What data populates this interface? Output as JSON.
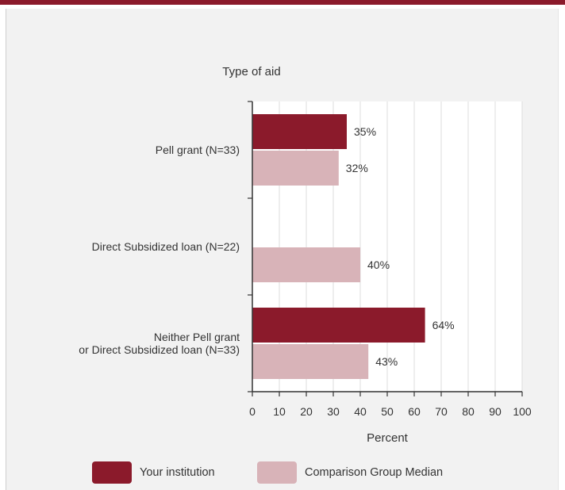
{
  "chart_data": {
    "type": "bar",
    "orientation": "horizontal",
    "title": "Type of aid",
    "xlabel": "Percent",
    "xlim": [
      0,
      100
    ],
    "xticks": [
      "0",
      "10",
      "20",
      "30",
      "40",
      "50",
      "60",
      "70",
      "80",
      "90",
      "100"
    ],
    "grid": true,
    "legend_position": "bottom",
    "categories": [
      "Pell grant  (N=33)",
      "Direct Subsidized loan (N=22)",
      "Neither Pell grant\nor Direct Subsidized loan (N=33)"
    ],
    "series": [
      {
        "name": "Your institution",
        "color": "#8b1a2b",
        "values": [
          35,
          null,
          64
        ],
        "labels": [
          "35%",
          "",
          "64%"
        ]
      },
      {
        "name": "Comparison Group Median",
        "color": "#d8b3b8",
        "values": [
          32,
          40,
          43
        ],
        "labels": [
          "32%",
          "40%",
          "43%"
        ]
      }
    ]
  }
}
